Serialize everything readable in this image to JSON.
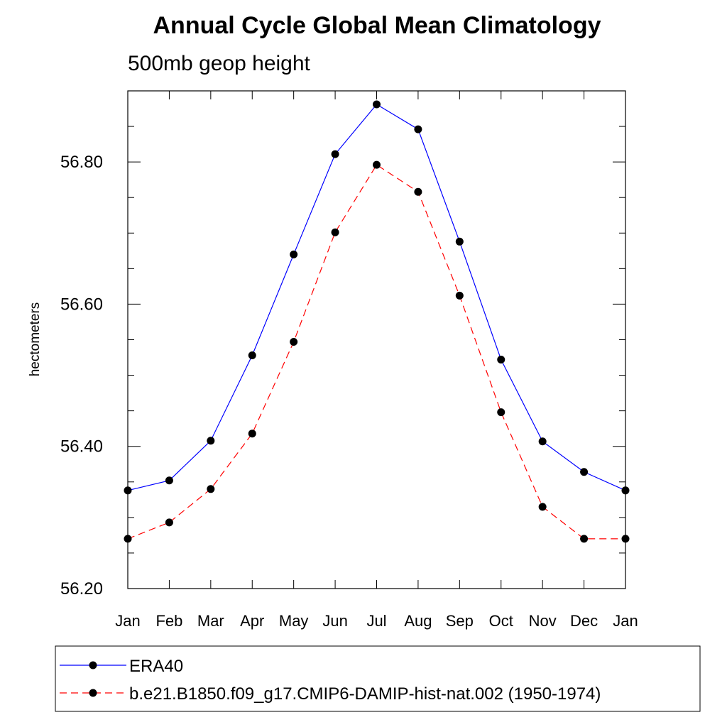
{
  "chart_data": {
    "type": "line",
    "title": "Annual Cycle Global Mean Climatology",
    "subtitle": "500mb geop height",
    "xlabel": "",
    "ylabel": "hectometers",
    "categories": [
      "Jan",
      "Feb",
      "Mar",
      "Apr",
      "May",
      "Jun",
      "Jul",
      "Aug",
      "Sep",
      "Oct",
      "Nov",
      "Dec",
      "Jan"
    ],
    "ylim": [
      56.2,
      56.9
    ],
    "yticks": [
      "56.20",
      "56.40",
      "56.60",
      "56.80"
    ],
    "series": [
      {
        "name": "ERA40",
        "color": "#0000ff",
        "dash": "solid",
        "values": [
          56.338,
          56.352,
          56.408,
          56.528,
          56.67,
          56.811,
          56.881,
          56.846,
          56.688,
          56.522,
          56.407,
          56.364,
          56.338
        ]
      },
      {
        "name": "b.e21.B1850.f09_g17.CMIP6-DAMIP-hist-nat.002 (1950-1974)",
        "color": "#ff0000",
        "dash": "dashed",
        "values": [
          56.27,
          56.293,
          56.34,
          56.418,
          56.547,
          56.701,
          56.796,
          56.758,
          56.612,
          56.448,
          56.315,
          56.27,
          56.27
        ]
      }
    ],
    "marker": "filled-circle",
    "marker_color": "#000000",
    "grid": false,
    "legend_position": "bottom"
  }
}
